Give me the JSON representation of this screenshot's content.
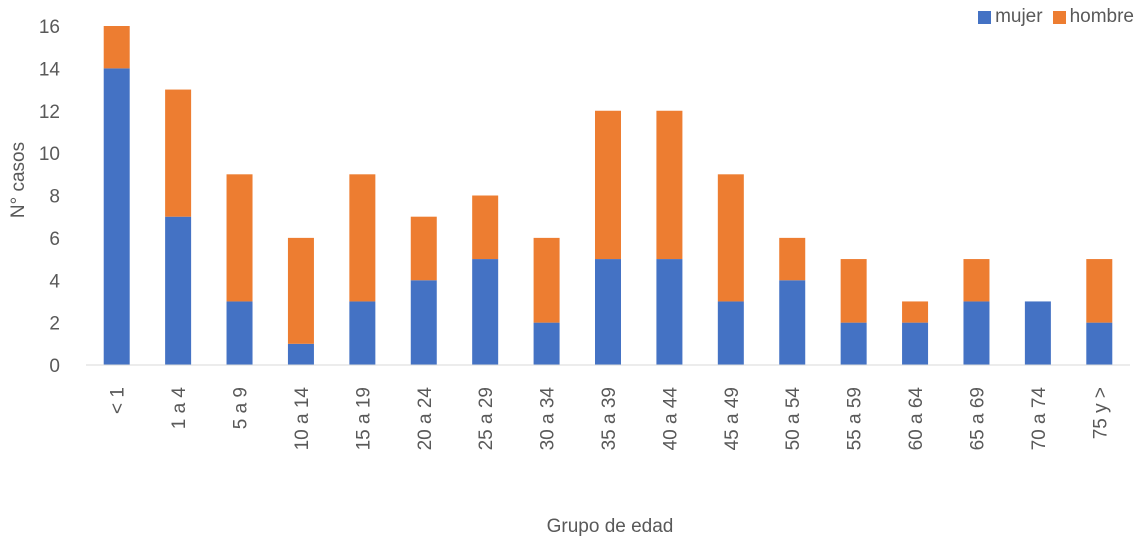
{
  "chart_data": {
    "type": "bar",
    "stacked": true,
    "xlabel": "Grupo de edad",
    "ylabel": "N° casos",
    "ylim": [
      0,
      16
    ],
    "yticks": [
      0,
      2,
      4,
      6,
      8,
      10,
      12,
      14,
      16
    ],
    "grid": false,
    "legend_position": "top-right",
    "categories": [
      "< 1",
      "1 a 4",
      "5 a 9",
      "10 a 14",
      "15 a 19",
      "20 a 24",
      "25 a 29",
      "30 a 34",
      "35 a 39",
      "40 a 44",
      "45 a 49",
      "50 a 54",
      "55 a 59",
      "60 a 64",
      "65 a 69",
      "70 a 74",
      "75 y >"
    ],
    "series": [
      {
        "name": "mujer",
        "color": "#4472C4",
        "values": [
          14,
          7,
          3,
          1,
          3,
          4,
          5,
          2,
          5,
          5,
          3,
          4,
          2,
          2,
          3,
          3,
          2
        ]
      },
      {
        "name": "hombre",
        "color": "#ED7D31",
        "values": [
          2,
          6,
          6,
          5,
          6,
          3,
          3,
          4,
          7,
          7,
          6,
          2,
          3,
          1,
          2,
          0,
          3
        ]
      }
    ]
  }
}
